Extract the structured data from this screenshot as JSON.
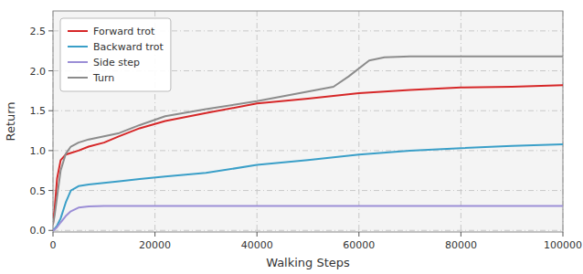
{
  "chart_data": {
    "type": "line",
    "xlabel": "Walking Steps",
    "ylabel": "Return",
    "xlim": [
      0,
      100000
    ],
    "ylim": [
      -0.02,
      2.75
    ],
    "xticks": [
      0,
      20000,
      40000,
      60000,
      80000,
      100000
    ],
    "yticks": [
      {
        "value": 0.0,
        "label": "0.0"
      },
      0.5,
      {
        "value": 1.0,
        "label": "1.0"
      },
      1.5,
      {
        "value": 2.0,
        "label": "2.0"
      },
      2.5
    ],
    "grid": true,
    "legend": "upper left",
    "series": [
      {
        "name": "Forward trot",
        "color": "#d62728",
        "x": [
          0,
          300,
          800,
          1500,
          2500,
          3500,
          5000,
          7000,
          10000,
          13000,
          17000,
          22000,
          30000,
          40000,
          50000,
          60000,
          70000,
          80000,
          90000,
          100000
        ],
        "values": [
          0.08,
          0.25,
          0.65,
          0.88,
          0.95,
          0.97,
          1.0,
          1.05,
          1.1,
          1.18,
          1.28,
          1.37,
          1.47,
          1.59,
          1.65,
          1.72,
          1.76,
          1.79,
          1.8,
          1.82
        ]
      },
      {
        "name": "Backward trot",
        "color": "#3a9fc8",
        "x": [
          0,
          300,
          800,
          1500,
          2500,
          3500,
          5000,
          7000,
          10000,
          13000,
          17000,
          22000,
          30000,
          40000,
          50000,
          60000,
          70000,
          80000,
          90000,
          100000
        ],
        "values": [
          0.0,
          0.02,
          0.06,
          0.15,
          0.35,
          0.5,
          0.555,
          0.575,
          0.595,
          0.615,
          0.645,
          0.675,
          0.72,
          0.82,
          0.88,
          0.95,
          1.0,
          1.03,
          1.06,
          1.08
        ]
      },
      {
        "name": "Side step",
        "color": "#9b8ed6",
        "x": [
          0,
          300,
          800,
          1500,
          2500,
          3500,
          5000,
          7000,
          10000,
          13000,
          17000,
          22000,
          30000,
          40000,
          100000
        ],
        "values": [
          0.0,
          0.01,
          0.04,
          0.1,
          0.18,
          0.24,
          0.285,
          0.3,
          0.305,
          0.305,
          0.305,
          0.305,
          0.305,
          0.305,
          0.305
        ]
      },
      {
        "name": "Turn",
        "color": "#8c8c8c",
        "x": [
          0,
          300,
          800,
          1500,
          2500,
          3500,
          5000,
          7000,
          10000,
          13000,
          17000,
          22000,
          30000,
          40000,
          50000,
          55000,
          58000,
          62000,
          65000,
          70000,
          80000,
          90000,
          100000
        ],
        "values": [
          0.08,
          0.18,
          0.42,
          0.75,
          0.96,
          1.05,
          1.1,
          1.14,
          1.18,
          1.22,
          1.32,
          1.43,
          1.52,
          1.62,
          1.74,
          1.8,
          1.93,
          2.13,
          2.17,
          2.18,
          2.18,
          2.18,
          2.18
        ]
      }
    ]
  }
}
